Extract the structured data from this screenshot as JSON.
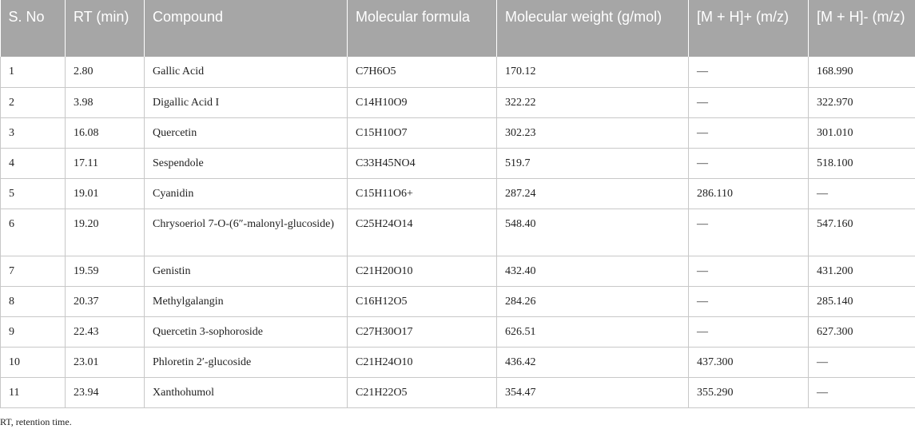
{
  "table": {
    "headers": [
      "S. No",
      "RT (min)",
      "Compound",
      "Molecular formula",
      "Molecular weight (g/mol)",
      "[M + H]+ (m/z)",
      "[M + H]- (m/z)"
    ],
    "rows": [
      [
        "1",
        "2.80",
        "Gallic Acid",
        "C7H6O5",
        "170.12",
        "—",
        "168.990"
      ],
      [
        "2",
        "3.98",
        "Digallic Acid I",
        "C14H10O9",
        "322.22",
        "—",
        "322.970"
      ],
      [
        "3",
        "16.08",
        "Quercetin",
        "C15H10O7",
        "302.23",
        "—",
        "301.010"
      ],
      [
        "4",
        "17.11",
        "Sespendole",
        "C33H45NO4",
        "519.7",
        "—",
        "518.100"
      ],
      [
        "5",
        "19.01",
        "Cyanidin",
        "C15H11O6+",
        "287.24",
        "286.110",
        "—"
      ],
      [
        "6",
        "19.20",
        "Chrysoeriol 7-O-(6″-malonyl-glucoside)",
        "C25H24O14",
        "548.40",
        "—",
        "547.160"
      ],
      [
        "7",
        "19.59",
        "Genistin",
        "C21H20O10",
        "432.40",
        "—",
        "431.200"
      ],
      [
        "8",
        "20.37",
        "Methylgalangin",
        "C16H12O5",
        "284.26",
        "—",
        "285.140"
      ],
      [
        "9",
        "22.43",
        "Quercetin 3-sophoroside",
        "C27H30O17",
        "626.51",
        "—",
        "627.300"
      ],
      [
        "10",
        "23.01",
        "Phloretin 2′-glucoside",
        "C21H24O10",
        "436.42",
        "437.300",
        "—"
      ],
      [
        "11",
        "23.94",
        "Xanthohumol",
        "C21H22O5",
        "354.47",
        "355.290",
        "—"
      ]
    ]
  },
  "footnote": "RT, retention time.",
  "colors": {
    "header_background": "#a6a6a6",
    "header_text": "#ffffff",
    "grid_line": "#c8c8c8"
  }
}
